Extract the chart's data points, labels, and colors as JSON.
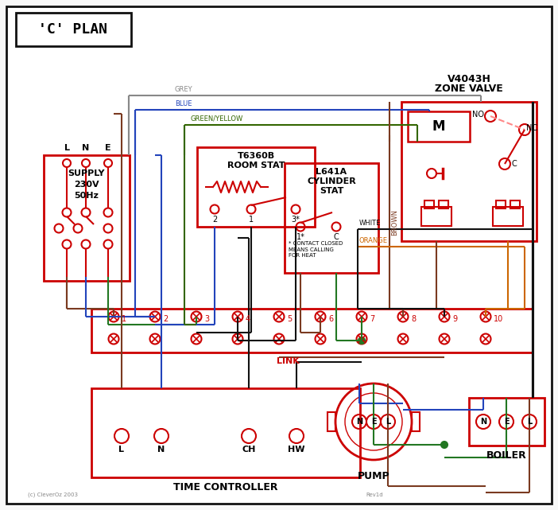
{
  "bg": "#f8f8f8",
  "colors": {
    "red": "#cc0000",
    "blue": "#2244bb",
    "green": "#227722",
    "brown": "#7a3a20",
    "grey": "#888888",
    "orange": "#cc6600",
    "black": "#111111",
    "pink": "#ff8888",
    "dark_green": "#336600"
  },
  "title": "'C' PLAN",
  "supply_label": "SUPPLY\n230V\n50Hz",
  "room_stat_label": "T6360B\nROOM STAT",
  "cyl_stat_label": "L641A\nCYLINDER\nSTAT",
  "zone_valve_title1": "V4043H",
  "zone_valve_title2": "ZONE VALVE",
  "tc_label": "TIME CONTROLLER",
  "pump_label": "PUMP",
  "boiler_label": "BOILER",
  "link_label": "LINK",
  "copyright": "(c) CleverOz 2003",
  "rev": "Rev1d",
  "contact_note": "* CONTACT CLOSED\nMEANS CALLING\nFOR HEAT"
}
